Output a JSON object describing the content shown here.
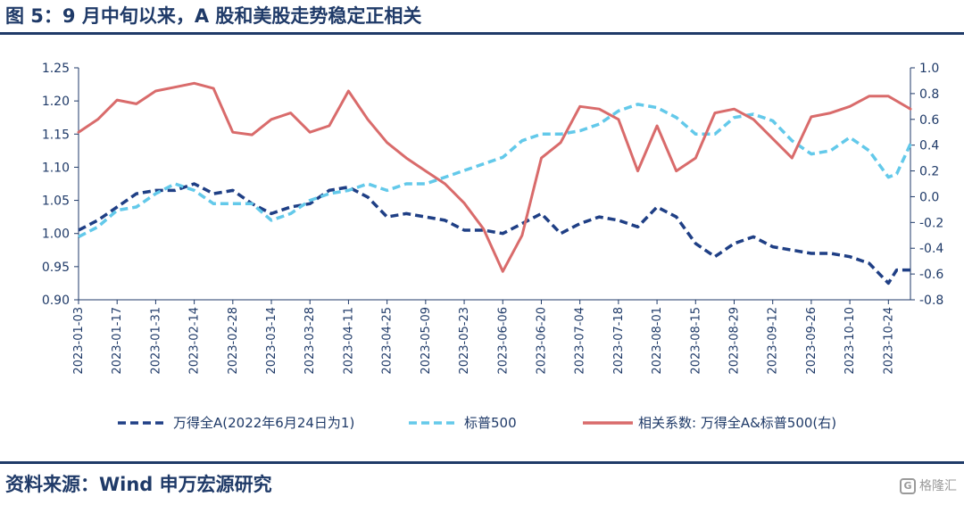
{
  "title": "图 5：9 月中旬以来，A 股和美股走势稳定正相关",
  "source": "资料来源：Wind  申万宏源研究",
  "watermark": "格隆汇",
  "chart_data": {
    "type": "line",
    "x_tick_labels": [
      "2023-01-03",
      "2023-01-17",
      "2023-01-31",
      "2023-02-14",
      "2023-02-28",
      "2023-03-14",
      "2023-03-28",
      "2023-04-11",
      "2023-04-25",
      "2023-05-09",
      "2023-05-23",
      "2023-06-06",
      "2023-06-20",
      "2023-07-04",
      "2023-07-18",
      "2023-08-01",
      "2023-08-15",
      "2023-08-29",
      "2023-09-12",
      "2023-09-26",
      "2023-10-10",
      "2023-10-24"
    ],
    "x_range": [
      "2023-01-03",
      "2023-11-01"
    ],
    "ylim_left": [
      0.9,
      1.25
    ],
    "yticks_left": [
      "1.25",
      "1.20",
      "1.15",
      "1.10",
      "1.05",
      "1.00",
      "0.95",
      "0.90"
    ],
    "ylim_right": [
      -0.8,
      1.0
    ],
    "yticks_right": [
      "1.0",
      "0.8",
      "0.6",
      "0.4",
      "0.2",
      "0.0",
      "-0.2",
      "-0.4",
      "-0.6",
      "-0.8"
    ],
    "grid": false,
    "legend_position": "bottom",
    "series": [
      {
        "name": "万得全A(2022年6月24日为1)",
        "axis": "left",
        "color": "#1f3f85",
        "style": "dashed",
        "points": [
          [
            "2023-01-03",
            1.005
          ],
          [
            "2023-01-10",
            1.02
          ],
          [
            "2023-01-17",
            1.04
          ],
          [
            "2023-01-24",
            1.06
          ],
          [
            "2023-01-31",
            1.065
          ],
          [
            "2023-02-07",
            1.065
          ],
          [
            "2023-02-14",
            1.075
          ],
          [
            "2023-02-21",
            1.06
          ],
          [
            "2023-02-28",
            1.065
          ],
          [
            "2023-03-07",
            1.045
          ],
          [
            "2023-03-14",
            1.03
          ],
          [
            "2023-03-21",
            1.04
          ],
          [
            "2023-03-28",
            1.045
          ],
          [
            "2023-04-04",
            1.065
          ],
          [
            "2023-04-11",
            1.07
          ],
          [
            "2023-04-18",
            1.055
          ],
          [
            "2023-04-25",
            1.025
          ],
          [
            "2023-05-02",
            1.03
          ],
          [
            "2023-05-09",
            1.025
          ],
          [
            "2023-05-16",
            1.02
          ],
          [
            "2023-05-23",
            1.005
          ],
          [
            "2023-05-30",
            1.005
          ],
          [
            "2023-06-06",
            1.0
          ],
          [
            "2023-06-13",
            1.015
          ],
          [
            "2023-06-20",
            1.03
          ],
          [
            "2023-06-27",
            1.0
          ],
          [
            "2023-07-04",
            1.015
          ],
          [
            "2023-07-11",
            1.025
          ],
          [
            "2023-07-18",
            1.02
          ],
          [
            "2023-07-25",
            1.01
          ],
          [
            "2023-08-01",
            1.04
          ],
          [
            "2023-08-08",
            1.025
          ],
          [
            "2023-08-15",
            0.985
          ],
          [
            "2023-08-22",
            0.965
          ],
          [
            "2023-08-29",
            0.985
          ],
          [
            "2023-09-05",
            0.995
          ],
          [
            "2023-09-12",
            0.98
          ],
          [
            "2023-09-19",
            0.975
          ],
          [
            "2023-09-26",
            0.97
          ],
          [
            "2023-10-03",
            0.97
          ],
          [
            "2023-10-10",
            0.965
          ],
          [
            "2023-10-17",
            0.955
          ],
          [
            "2023-10-24",
            0.925
          ],
          [
            "2023-10-27",
            0.945
          ],
          [
            "2023-11-01",
            0.945
          ]
        ]
      },
      {
        "name": "标普500",
        "axis": "left",
        "color": "#63c9ea",
        "style": "dashed",
        "points": [
          [
            "2023-01-03",
            0.995
          ],
          [
            "2023-01-10",
            1.01
          ],
          [
            "2023-01-17",
            1.035
          ],
          [
            "2023-01-24",
            1.04
          ],
          [
            "2023-01-31",
            1.06
          ],
          [
            "2023-02-07",
            1.075
          ],
          [
            "2023-02-14",
            1.065
          ],
          [
            "2023-02-21",
            1.045
          ],
          [
            "2023-02-28",
            1.045
          ],
          [
            "2023-03-07",
            1.045
          ],
          [
            "2023-03-14",
            1.02
          ],
          [
            "2023-03-21",
            1.03
          ],
          [
            "2023-03-28",
            1.05
          ],
          [
            "2023-04-04",
            1.06
          ],
          [
            "2023-04-11",
            1.065
          ],
          [
            "2023-04-18",
            1.075
          ],
          [
            "2023-04-25",
            1.065
          ],
          [
            "2023-05-02",
            1.075
          ],
          [
            "2023-05-09",
            1.075
          ],
          [
            "2023-05-16",
            1.085
          ],
          [
            "2023-05-23",
            1.095
          ],
          [
            "2023-05-30",
            1.105
          ],
          [
            "2023-06-06",
            1.115
          ],
          [
            "2023-06-13",
            1.14
          ],
          [
            "2023-06-20",
            1.15
          ],
          [
            "2023-06-27",
            1.15
          ],
          [
            "2023-07-04",
            1.155
          ],
          [
            "2023-07-11",
            1.165
          ],
          [
            "2023-07-18",
            1.185
          ],
          [
            "2023-07-25",
            1.195
          ],
          [
            "2023-08-01",
            1.19
          ],
          [
            "2023-08-08",
            1.175
          ],
          [
            "2023-08-15",
            1.15
          ],
          [
            "2023-08-22",
            1.15
          ],
          [
            "2023-08-29",
            1.175
          ],
          [
            "2023-09-05",
            1.18
          ],
          [
            "2023-09-12",
            1.17
          ],
          [
            "2023-09-19",
            1.14
          ],
          [
            "2023-09-26",
            1.12
          ],
          [
            "2023-10-03",
            1.125
          ],
          [
            "2023-10-10",
            1.145
          ],
          [
            "2023-10-17",
            1.125
          ],
          [
            "2023-10-24",
            1.085
          ],
          [
            "2023-10-27",
            1.09
          ],
          [
            "2023-11-01",
            1.135
          ]
        ]
      },
      {
        "name": "相关系数: 万得全A&标普500(右)",
        "axis": "right",
        "color": "#d96b6b",
        "style": "solid",
        "points": [
          [
            "2023-01-03",
            0.5
          ],
          [
            "2023-01-10",
            0.6
          ],
          [
            "2023-01-17",
            0.75
          ],
          [
            "2023-01-24",
            0.72
          ],
          [
            "2023-01-31",
            0.82
          ],
          [
            "2023-02-07",
            0.85
          ],
          [
            "2023-02-14",
            0.88
          ],
          [
            "2023-02-21",
            0.84
          ],
          [
            "2023-02-28",
            0.5
          ],
          [
            "2023-03-07",
            0.48
          ],
          [
            "2023-03-14",
            0.6
          ],
          [
            "2023-03-21",
            0.65
          ],
          [
            "2023-03-28",
            0.5
          ],
          [
            "2023-04-04",
            0.55
          ],
          [
            "2023-04-11",
            0.82
          ],
          [
            "2023-04-18",
            0.6
          ],
          [
            "2023-04-25",
            0.42
          ],
          [
            "2023-05-02",
            0.3
          ],
          [
            "2023-05-09",
            0.2
          ],
          [
            "2023-05-16",
            0.1
          ],
          [
            "2023-05-23",
            -0.05
          ],
          [
            "2023-05-30",
            -0.25
          ],
          [
            "2023-06-06",
            -0.58
          ],
          [
            "2023-06-13",
            -0.3
          ],
          [
            "2023-06-20",
            0.3
          ],
          [
            "2023-06-27",
            0.42
          ],
          [
            "2023-07-04",
            0.7
          ],
          [
            "2023-07-11",
            0.68
          ],
          [
            "2023-07-18",
            0.6
          ],
          [
            "2023-07-25",
            0.2
          ],
          [
            "2023-08-01",
            0.55
          ],
          [
            "2023-08-08",
            0.2
          ],
          [
            "2023-08-15",
            0.3
          ],
          [
            "2023-08-22",
            0.65
          ],
          [
            "2023-08-29",
            0.68
          ],
          [
            "2023-09-05",
            0.6
          ],
          [
            "2023-09-12",
            0.45
          ],
          [
            "2023-09-19",
            0.3
          ],
          [
            "2023-09-26",
            0.62
          ],
          [
            "2023-10-03",
            0.65
          ],
          [
            "2023-10-10",
            0.7
          ],
          [
            "2023-10-17",
            0.78
          ],
          [
            "2023-10-24",
            0.78
          ],
          [
            "2023-11-01",
            0.68
          ]
        ]
      }
    ]
  }
}
